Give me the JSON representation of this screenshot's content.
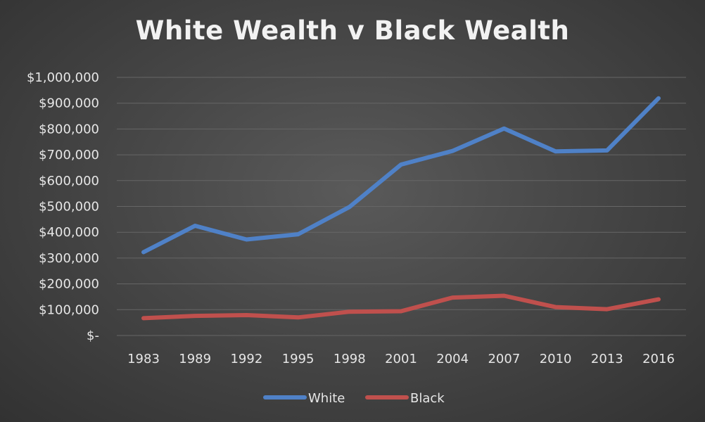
{
  "chart_data": {
    "type": "line",
    "title": "White Wealth v Black Wealth",
    "xlabel": "",
    "ylabel": "",
    "categories": [
      "1983",
      "1989",
      "1992",
      "1995",
      "1998",
      "2001",
      "2004",
      "2007",
      "2010",
      "2013",
      "2016"
    ],
    "ylim": [
      0,
      1000000
    ],
    "y_ticks": [
      {
        "value": 0,
        "label": "$-"
      },
      {
        "value": 100000,
        "label": "$100,000"
      },
      {
        "value": 200000,
        "label": "$200,000"
      },
      {
        "value": 300000,
        "label": "$300,000"
      },
      {
        "value": 400000,
        "label": "$400,000"
      },
      {
        "value": 500000,
        "label": "$500,000"
      },
      {
        "value": 600000,
        "label": "$600,000"
      },
      {
        "value": 700000,
        "label": "$700,000"
      },
      {
        "value": 800000,
        "label": "$800,000"
      },
      {
        "value": 900000,
        "label": "$900,000"
      },
      {
        "value": 1000000,
        "label": "$1,000,000"
      }
    ],
    "series": [
      {
        "name": "White",
        "color": "#4f81c7",
        "values": [
          323000,
          425000,
          372000,
          392000,
          498000,
          662000,
          715000,
          802000,
          713000,
          717000,
          919000
        ]
      },
      {
        "name": "Black",
        "color": "#c0504d",
        "values": [
          67000,
          76000,
          79000,
          70000,
          92000,
          94000,
          147000,
          154000,
          110000,
          102000,
          140000
        ]
      }
    ],
    "grid": true,
    "legend_position": "bottom"
  },
  "colors": {
    "gridline": "#666666",
    "text": "#e6e6e6"
  }
}
